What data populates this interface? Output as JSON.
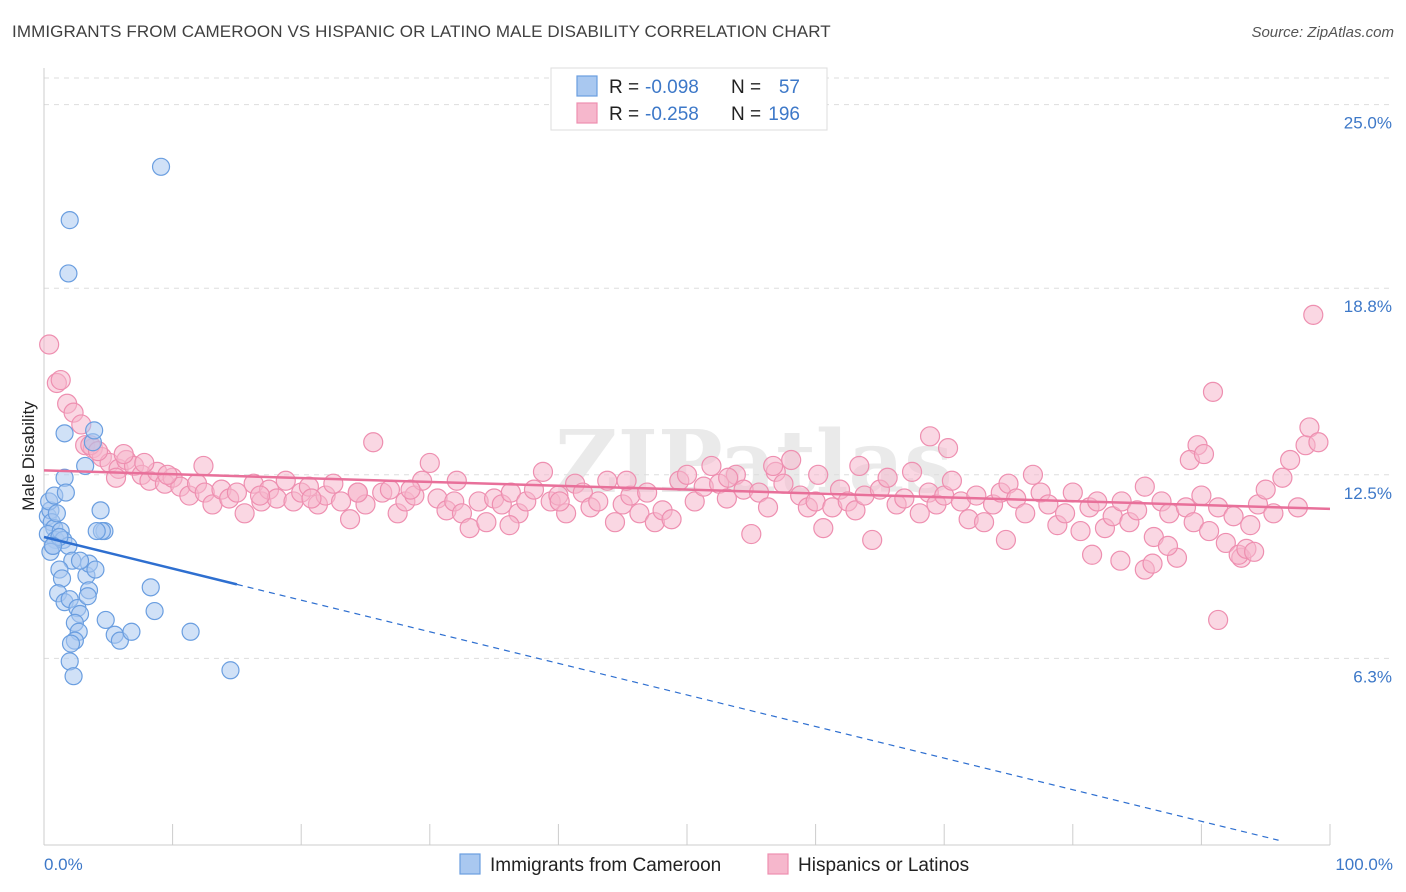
{
  "title": "IMMIGRANTS FROM CAMEROON VS HISPANIC OR LATINO MALE DISABILITY CORRELATION CHART",
  "source": "Source: ZipAtlas.com",
  "watermark": "ZIPatlas",
  "colors": {
    "blue_fill": "#a9c8f0",
    "blue_stroke": "#6a9ee0",
    "blue_line": "#2e6fd0",
    "pink_fill": "#f6b7cc",
    "pink_stroke": "#ee8fb0",
    "pink_line": "#e8709a",
    "accent_text": "#3d78c8",
    "grid": "#dddddd"
  },
  "legend": {
    "r_label": "R =",
    "n_label": "N =",
    "items": [
      {
        "r": "-0.098",
        "n": "57"
      },
      {
        "r": "-0.258",
        "n": "196"
      }
    ]
  },
  "chart_data": {
    "type": "scatter",
    "title": "IMMIGRANTS FROM CAMEROON VS HISPANIC OR LATINO MALE DISABILITY CORRELATION CHART",
    "xlabel": "",
    "ylabel": "Male Disability",
    "xlim": [
      0,
      100
    ],
    "ylim": [
      0,
      26
    ],
    "x_tick_labels": [
      "0.0%",
      "100.0%"
    ],
    "y_ticks": [
      6.3,
      12.5,
      18.8,
      25.0
    ],
    "y_tick_labels": [
      "6.3%",
      "12.5%",
      "18.8%",
      "25.0%"
    ],
    "legend_position": "top-center",
    "series": [
      {
        "name": "Immigrants from Cameroon",
        "color": "blue",
        "trend": {
          "x0": 0,
          "y0": 10.4,
          "x1": 15,
          "y1": 8.8,
          "dash_to": 96
        },
        "points": [
          [
            0.3,
            11.1
          ],
          [
            0.5,
            11.3
          ],
          [
            0.4,
            11.6
          ],
          [
            0.6,
            10.9
          ],
          [
            0.8,
            10.7
          ],
          [
            0.3,
            10.5
          ],
          [
            0.9,
            10.3
          ],
          [
            0.7,
            10.1
          ],
          [
            0.5,
            9.9
          ],
          [
            1.0,
            11.2
          ],
          [
            1.3,
            10.6
          ],
          [
            0.8,
            11.8
          ],
          [
            1.5,
            10.3
          ],
          [
            1.6,
            12.4
          ],
          [
            1.7,
            11.9
          ],
          [
            1.6,
            13.9
          ],
          [
            1.9,
            10.1
          ],
          [
            2.2,
            9.6
          ],
          [
            1.2,
            9.3
          ],
          [
            1.4,
            9.0
          ],
          [
            1.1,
            8.5
          ],
          [
            1.6,
            8.2
          ],
          [
            2.0,
            8.3
          ],
          [
            2.6,
            8.0
          ],
          [
            2.8,
            7.8
          ],
          [
            3.3,
            9.1
          ],
          [
            3.5,
            9.5
          ],
          [
            3.5,
            8.6
          ],
          [
            4.0,
            9.3
          ],
          [
            4.4,
            11.3
          ],
          [
            4.7,
            10.6
          ],
          [
            4.5,
            10.6
          ],
          [
            4.1,
            10.6
          ],
          [
            2.4,
            7.5
          ],
          [
            2.7,
            7.2
          ],
          [
            2.4,
            6.9
          ],
          [
            2.1,
            6.8
          ],
          [
            2.0,
            6.2
          ],
          [
            2.3,
            5.7
          ],
          [
            3.4,
            8.4
          ],
          [
            4.8,
            7.6
          ],
          [
            5.5,
            7.1
          ],
          [
            5.9,
            6.9
          ],
          [
            6.8,
            7.2
          ],
          [
            8.3,
            8.7
          ],
          [
            8.6,
            7.9
          ],
          [
            9.1,
            22.9
          ],
          [
            11.4,
            7.2
          ],
          [
            14.5,
            5.9
          ],
          [
            2.0,
            21.1
          ],
          [
            1.9,
            19.3
          ],
          [
            1.2,
            10.4
          ],
          [
            0.7,
            10.1
          ],
          [
            2.8,
            9.6
          ],
          [
            3.8,
            13.6
          ],
          [
            3.9,
            14.0
          ],
          [
            3.2,
            12.8
          ]
        ]
      },
      {
        "name": "Hispanics or Latinos",
        "color": "pink",
        "trend": {
          "x0": 0,
          "y0": 12.65,
          "x1": 100,
          "y1": 11.35
        },
        "points": [
          [
            0.4,
            16.9
          ],
          [
            1.0,
            15.6
          ],
          [
            1.3,
            15.7
          ],
          [
            1.8,
            14.9
          ],
          [
            2.3,
            14.6
          ],
          [
            2.9,
            14.2
          ],
          [
            3.2,
            13.5
          ],
          [
            3.8,
            13.4
          ],
          [
            4.5,
            13.1
          ],
          [
            5.1,
            12.9
          ],
          [
            5.8,
            12.7
          ],
          [
            6.4,
            13.0
          ],
          [
            7.0,
            12.8
          ],
          [
            7.6,
            12.5
          ],
          [
            8.2,
            12.3
          ],
          [
            8.8,
            12.6
          ],
          [
            9.4,
            12.2
          ],
          [
            10.0,
            12.4
          ],
          [
            10.6,
            12.1
          ],
          [
            11.3,
            11.8
          ],
          [
            11.9,
            12.2
          ],
          [
            12.5,
            11.9
          ],
          [
            13.1,
            11.5
          ],
          [
            13.8,
            12.0
          ],
          [
            14.4,
            11.7
          ],
          [
            15.0,
            11.9
          ],
          [
            15.6,
            11.2
          ],
          [
            16.3,
            12.2
          ],
          [
            16.9,
            11.6
          ],
          [
            17.5,
            12.0
          ],
          [
            18.1,
            11.7
          ],
          [
            18.8,
            12.3
          ],
          [
            19.4,
            11.6
          ],
          [
            20.0,
            11.9
          ],
          [
            20.6,
            12.1
          ],
          [
            21.3,
            11.5
          ],
          [
            21.9,
            11.8
          ],
          [
            22.5,
            12.2
          ],
          [
            23.1,
            11.6
          ],
          [
            23.8,
            11.0
          ],
          [
            24.4,
            11.9
          ],
          [
            25.0,
            11.5
          ],
          [
            25.6,
            13.6
          ],
          [
            26.3,
            11.9
          ],
          [
            26.9,
            12.0
          ],
          [
            27.5,
            11.2
          ],
          [
            28.1,
            11.6
          ],
          [
            28.8,
            11.8
          ],
          [
            29.4,
            12.3
          ],
          [
            30.0,
            12.9
          ],
          [
            30.6,
            11.7
          ],
          [
            31.3,
            11.3
          ],
          [
            31.9,
            11.6
          ],
          [
            32.5,
            11.2
          ],
          [
            33.1,
            10.7
          ],
          [
            33.8,
            11.6
          ],
          [
            34.4,
            10.9
          ],
          [
            35.0,
            11.7
          ],
          [
            35.6,
            11.5
          ],
          [
            36.3,
            11.9
          ],
          [
            36.9,
            11.2
          ],
          [
            37.5,
            11.6
          ],
          [
            38.1,
            12.0
          ],
          [
            38.8,
            12.6
          ],
          [
            39.4,
            11.6
          ],
          [
            40.0,
            11.8
          ],
          [
            40.6,
            11.2
          ],
          [
            41.3,
            12.2
          ],
          [
            41.9,
            11.9
          ],
          [
            42.5,
            11.4
          ],
          [
            43.1,
            11.6
          ],
          [
            43.8,
            12.3
          ],
          [
            44.4,
            10.9
          ],
          [
            45.0,
            11.5
          ],
          [
            45.6,
            11.8
          ],
          [
            46.3,
            11.2
          ],
          [
            46.9,
            11.9
          ],
          [
            47.5,
            10.9
          ],
          [
            48.1,
            11.3
          ],
          [
            48.8,
            11.0
          ],
          [
            49.4,
            12.3
          ],
          [
            50.0,
            12.5
          ],
          [
            50.6,
            11.6
          ],
          [
            51.3,
            12.1
          ],
          [
            51.9,
            12.8
          ],
          [
            52.5,
            12.2
          ],
          [
            53.1,
            11.7
          ],
          [
            53.8,
            12.5
          ],
          [
            54.4,
            12.0
          ],
          [
            55.0,
            10.5
          ],
          [
            55.6,
            11.9
          ],
          [
            56.3,
            11.4
          ],
          [
            56.9,
            12.6
          ],
          [
            57.5,
            12.2
          ],
          [
            58.1,
            13.0
          ],
          [
            58.8,
            11.8
          ],
          [
            59.4,
            11.4
          ],
          [
            60.0,
            11.6
          ],
          [
            60.6,
            10.7
          ],
          [
            61.3,
            11.4
          ],
          [
            61.9,
            12.0
          ],
          [
            62.5,
            11.6
          ],
          [
            63.1,
            11.3
          ],
          [
            63.8,
            11.8
          ],
          [
            64.4,
            10.3
          ],
          [
            65.0,
            12.0
          ],
          [
            65.6,
            12.4
          ],
          [
            66.3,
            11.5
          ],
          [
            66.9,
            11.7
          ],
          [
            67.5,
            12.6
          ],
          [
            68.1,
            11.2
          ],
          [
            68.8,
            11.9
          ],
          [
            69.4,
            11.5
          ],
          [
            70.0,
            11.8
          ],
          [
            70.6,
            12.3
          ],
          [
            71.3,
            11.6
          ],
          [
            71.9,
            11.0
          ],
          [
            72.5,
            11.8
          ],
          [
            73.1,
            10.9
          ],
          [
            73.8,
            11.5
          ],
          [
            74.4,
            11.9
          ],
          [
            75.0,
            12.2
          ],
          [
            75.6,
            11.7
          ],
          [
            76.3,
            11.2
          ],
          [
            76.9,
            12.5
          ],
          [
            77.5,
            11.9
          ],
          [
            78.1,
            11.5
          ],
          [
            78.8,
            10.8
          ],
          [
            79.4,
            11.2
          ],
          [
            80.0,
            11.9
          ],
          [
            80.6,
            10.6
          ],
          [
            81.3,
            11.4
          ],
          [
            81.9,
            11.6
          ],
          [
            82.5,
            10.7
          ],
          [
            83.1,
            11.1
          ],
          [
            83.8,
            11.6
          ],
          [
            84.4,
            10.9
          ],
          [
            85.0,
            11.3
          ],
          [
            85.6,
            12.1
          ],
          [
            86.3,
            10.4
          ],
          [
            86.9,
            11.6
          ],
          [
            87.5,
            11.2
          ],
          [
            88.1,
            9.7
          ],
          [
            88.8,
            11.4
          ],
          [
            89.4,
            10.9
          ],
          [
            90.0,
            11.8
          ],
          [
            90.6,
            10.6
          ],
          [
            91.3,
            11.4
          ],
          [
            91.9,
            10.2
          ],
          [
            92.5,
            11.1
          ],
          [
            93.1,
            9.7
          ],
          [
            93.8,
            10.8
          ],
          [
            94.4,
            11.5
          ],
          [
            95.0,
            12.0
          ],
          [
            95.6,
            11.2
          ],
          [
            96.3,
            12.4
          ],
          [
            96.9,
            13.0
          ],
          [
            97.5,
            11.4
          ],
          [
            98.1,
            13.5
          ],
          [
            98.4,
            14.1
          ],
          [
            98.7,
            17.9
          ],
          [
            99.1,
            13.6
          ],
          [
            90.9,
            15.3
          ],
          [
            91.3,
            7.6
          ],
          [
            89.7,
            13.5
          ],
          [
            89.1,
            13.0
          ],
          [
            90.2,
            13.2
          ],
          [
            92.9,
            9.8
          ],
          [
            93.5,
            10.0
          ],
          [
            94.1,
            9.9
          ],
          [
            85.6,
            9.3
          ],
          [
            81.5,
            9.8
          ],
          [
            83.7,
            9.6
          ],
          [
            86.2,
            9.5
          ],
          [
            87.4,
            10.1
          ],
          [
            74.8,
            10.3
          ],
          [
            70.3,
            13.4
          ],
          [
            68.9,
            13.8
          ],
          [
            63.4,
            12.8
          ],
          [
            60.2,
            12.5
          ],
          [
            56.7,
            12.8
          ],
          [
            53.2,
            12.4
          ],
          [
            45.3,
            12.3
          ],
          [
            40.1,
            11.6
          ],
          [
            36.2,
            10.8
          ],
          [
            32.1,
            12.3
          ],
          [
            28.5,
            12.0
          ],
          [
            24.4,
            11.9
          ],
          [
            20.8,
            11.7
          ],
          [
            16.8,
            11.8
          ],
          [
            12.4,
            12.8
          ],
          [
            9.6,
            12.5
          ],
          [
            7.8,
            12.9
          ],
          [
            6.2,
            13.2
          ],
          [
            5.6,
            12.4
          ],
          [
            3.6,
            13.5
          ],
          [
            4.2,
            13.3
          ]
        ]
      }
    ]
  }
}
